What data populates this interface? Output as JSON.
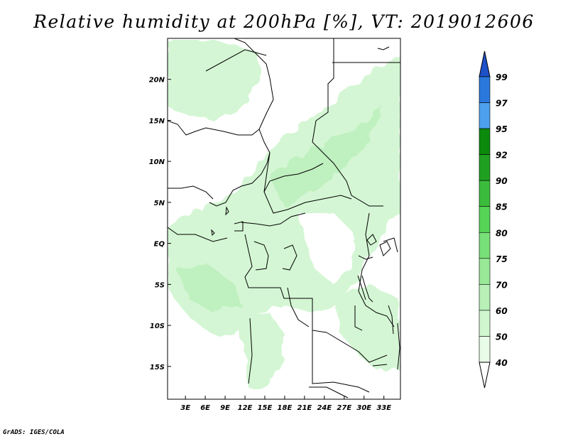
{
  "title": "Relative humidity at 200hPa [%], VT: 2019012606",
  "credit": "GrADS: IGES/COLA",
  "map": {
    "lat_range": [
      -19,
      25
    ],
    "lon_range": [
      0.3,
      35.5
    ],
    "lat_ticks": [
      "20N",
      "15N",
      "10N",
      "5N",
      "EQ",
      "5S",
      "10S",
      "15S"
    ],
    "lat_tick_values": [
      20,
      15,
      10,
      5,
      0,
      -5,
      -10,
      -15
    ],
    "lon_ticks": [
      "3E",
      "6E",
      "9E",
      "12E",
      "15E",
      "18E",
      "21E",
      "24E",
      "27E",
      "30E",
      "33E"
    ],
    "lon_tick_values": [
      3,
      6,
      9,
      12,
      15,
      18,
      21,
      24,
      27,
      30,
      33
    ]
  },
  "colorbar": {
    "labels": [
      "99",
      "97",
      "95",
      "92",
      "90",
      "85",
      "80",
      "75",
      "70",
      "60",
      "50",
      "40"
    ],
    "colors": [
      "#1e50c8",
      "#2a78dc",
      "#4ca0ec",
      "#0c8a0c",
      "#20a020",
      "#3cbc3c",
      "#55d455",
      "#78e078",
      "#98e898",
      "#b8f0b8",
      "#d0f6d0",
      "#e8fce8"
    ],
    "below_color": "#ffffff"
  }
}
